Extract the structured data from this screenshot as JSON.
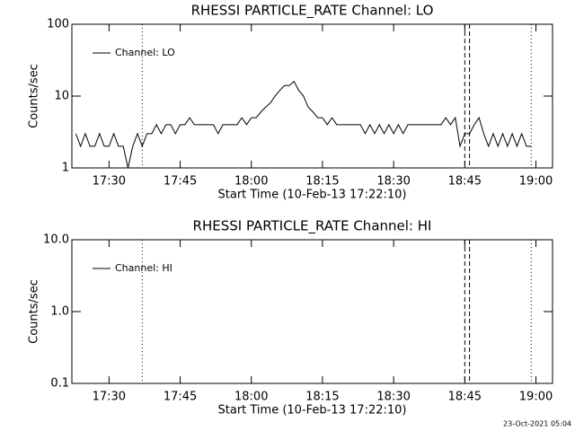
{
  "chart_data": [
    {
      "type": "line",
      "title": "RHESSI PARTICLE_RATE Channel: LO",
      "xlabel": "Start Time (10-Feb-13 17:22:10)",
      "ylabel": "Counts/sec",
      "xlim": [
        "17:22:10",
        "19:03:30"
      ],
      "xticks": [
        "17:30",
        "17:45",
        "18:00",
        "18:15",
        "18:30",
        "18:45",
        "19:00"
      ],
      "ylim": [
        1,
        100
      ],
      "yticks": [
        1,
        10,
        100
      ],
      "log_y": true,
      "legend": "upper left",
      "vlines": [
        {
          "x": "17:37",
          "style": "dotted"
        },
        {
          "x": "18:45",
          "style": "dashed"
        },
        {
          "x": "18:46",
          "style": "dashed"
        },
        {
          "x": "18:59",
          "style": "dotted"
        }
      ],
      "series": [
        {
          "name": "Channel: LO",
          "color": "#000000",
          "x": [
            "17:23",
            "17:24",
            "17:25",
            "17:26",
            "17:27",
            "17:28",
            "17:29",
            "17:30",
            "17:31",
            "17:32",
            "17:33",
            "17:34",
            "17:35",
            "17:36",
            "17:37",
            "17:38",
            "17:39",
            "17:40",
            "17:41",
            "17:42",
            "17:43",
            "17:44",
            "17:45",
            "17:46",
            "17:47",
            "17:48",
            "17:49",
            "17:50",
            "17:51",
            "17:52",
            "17:53",
            "17:54",
            "17:55",
            "17:56",
            "17:57",
            "17:58",
            "17:59",
            "18:00",
            "18:01",
            "18:02",
            "18:03",
            "18:04",
            "18:05",
            "18:06",
            "18:07",
            "18:08",
            "18:09",
            "18:10",
            "18:11",
            "18:12",
            "18:13",
            "18:14",
            "18:15",
            "18:16",
            "18:17",
            "18:18",
            "18:19",
            "18:20",
            "18:21",
            "18:22",
            "18:23",
            "18:24",
            "18:25",
            "18:26",
            "18:27",
            "18:28",
            "18:29",
            "18:30",
            "18:31",
            "18:32",
            "18:33",
            "18:34",
            "18:35",
            "18:36",
            "18:37",
            "18:38",
            "18:39",
            "18:40",
            "18:41",
            "18:42",
            "18:43",
            "18:44",
            "18:45",
            "18:46",
            "18:47",
            "18:48",
            "18:49",
            "18:50",
            "18:51",
            "18:52",
            "18:53",
            "18:54",
            "18:55",
            "18:56",
            "18:57",
            "18:58",
            "18:59"
          ],
          "values": [
            3,
            2,
            3,
            2,
            2,
            3,
            2,
            2,
            3,
            2,
            2,
            1,
            2,
            3,
            2,
            3,
            3,
            4,
            3,
            4,
            4,
            3,
            4,
            4,
            5,
            4,
            4,
            4,
            4,
            4,
            3,
            4,
            4,
            4,
            4,
            5,
            4,
            5,
            5,
            6,
            7,
            8,
            10,
            12,
            14,
            14,
            16,
            12,
            10,
            7,
            6,
            5,
            5,
            4,
            5,
            4,
            4,
            4,
            4,
            4,
            4,
            3,
            4,
            3,
            4,
            3,
            4,
            3,
            4,
            3,
            4,
            4,
            4,
            4,
            4,
            4,
            4,
            4,
            5,
            4,
            5,
            2,
            3,
            3,
            4,
            5,
            3,
            2,
            3,
            2,
            3,
            2,
            3,
            2,
            3,
            2,
            2
          ]
        }
      ]
    },
    {
      "type": "line",
      "title": "RHESSI PARTICLE_RATE Channel: HI",
      "xlabel": "Start Time (10-Feb-13 17:22:10)",
      "ylabel": "Counts/sec",
      "xlim": [
        "17:22:10",
        "19:03:30"
      ],
      "xticks": [
        "17:30",
        "17:45",
        "18:00",
        "18:15",
        "18:30",
        "18:45",
        "19:00"
      ],
      "ylim": [
        0.1,
        10
      ],
      "yticks": [
        0.1,
        {
          "value": 1,
          "label": "1.0"
        },
        {
          "value": 10,
          "label": "10.0"
        }
      ],
      "log_y": true,
      "legend": "upper left",
      "vlines": [
        {
          "x": "17:37",
          "style": "dotted"
        },
        {
          "x": "18:45",
          "style": "dashed"
        },
        {
          "x": "18:46",
          "style": "dashed"
        },
        {
          "x": "18:59",
          "style": "dotted"
        }
      ],
      "series": [
        {
          "name": "Channel: HI",
          "color": "#000000",
          "x": [],
          "values": []
        }
      ]
    }
  ],
  "footer": "23-Oct-2021 05:04"
}
